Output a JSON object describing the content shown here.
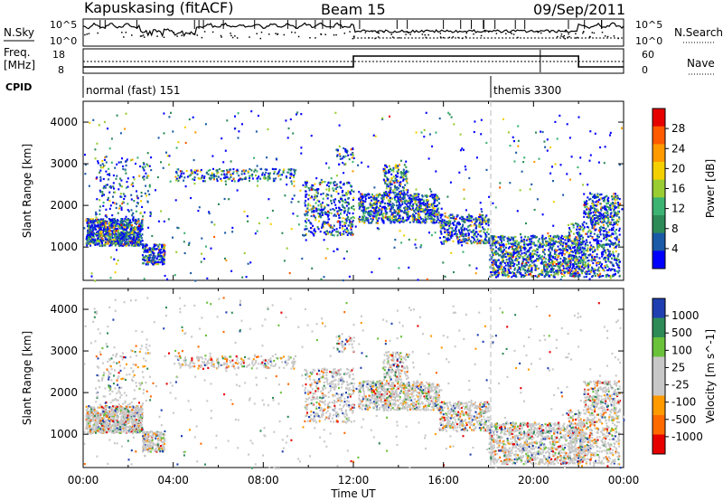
{
  "header": {
    "station": "Kapuskasing (fitACF)",
    "beam": "Beam 15",
    "date": "09/Sep/2011"
  },
  "panels": {
    "nsky_label": "N.Sky",
    "nsky_ticks": [
      "10^5",
      "10^0"
    ],
    "nsearch_label": "N.Search",
    "freq_label_1": "Freq.",
    "freq_label_2": "[MHz]",
    "freq_ticks": [
      "18",
      "8"
    ],
    "nave_label": "Nave",
    "nave_ticks": [
      "60",
      "0"
    ],
    "cpid_label": "CPID",
    "cpid_segments": [
      {
        "label": "normal (fast) 151",
        "start_hour": 0,
        "end_hour": 18.1
      },
      {
        "label": "themis 3300",
        "start_hour": 18.1,
        "end_hour": 24
      }
    ],
    "power_colorbar": {
      "title": "Power [dB]",
      "ticks": [
        "28",
        "24",
        "20",
        "16",
        "12",
        "8",
        "4"
      ],
      "colors": [
        "#e60000",
        "#ff5a00",
        "#ff9a00",
        "#f5d000",
        "#9acd32",
        "#3cb371",
        "#2e8b57",
        "#1a5aa6",
        "#0000ff"
      ]
    },
    "velocity_colorbar": {
      "title": "Velocity [m s^-1]",
      "ticks": [
        "1000",
        "500",
        "100",
        "25",
        "-25",
        "-100",
        "-500",
        "-1000"
      ],
      "colors": [
        "#1f3fb0",
        "#2e8b57",
        "#6ac13a",
        "#c8c8c8",
        "#c8c8c8",
        "#ff9a00",
        "#ff6a00",
        "#e60000"
      ]
    }
  },
  "chart_data": [
    {
      "type": "heatmap",
      "title": "Power",
      "xlabel": "",
      "ylabel": "Slant Range [km]",
      "xlim_hours": [
        0,
        24
      ],
      "ylim": [
        200,
        4500
      ],
      "y_ticks": [
        1000,
        2000,
        3000,
        4000
      ],
      "colorbar_range": [
        0,
        30
      ]
    },
    {
      "type": "heatmap",
      "title": "Velocity",
      "xlabel": "Time UT",
      "ylabel": "Slant Range [km]",
      "xlim_hours": [
        0,
        24
      ],
      "ylim": [
        200,
        4500
      ],
      "y_ticks": [
        1000,
        2000,
        3000,
        4000
      ],
      "x_tick_labels": [
        "00:00",
        "04:00",
        "08:00",
        "12:00",
        "16:00",
        "20:00",
        "00:00"
      ],
      "colorbar_range": [
        -1000,
        1000
      ]
    }
  ]
}
